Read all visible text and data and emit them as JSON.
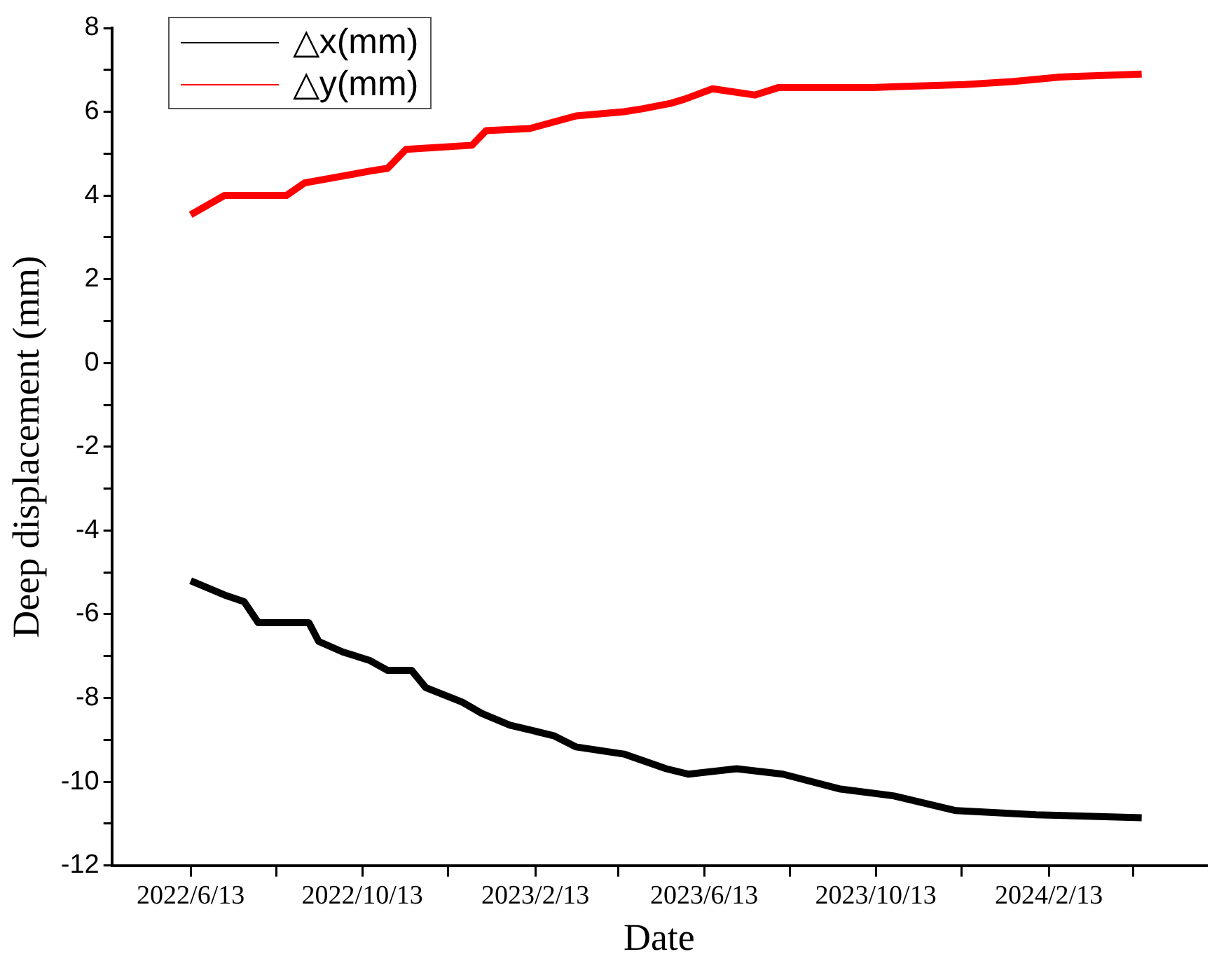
{
  "chart_data": {
    "type": "line",
    "xlabel": "Date",
    "ylabel": "Deep displacement (mm)",
    "xlim": [
      "2022-04-18",
      "2024-06-04"
    ],
    "xticks": [
      {
        "value": "2022-06-13",
        "label": "2022/6/13"
      },
      {
        "value": "2022-08-13",
        "label": null
      },
      {
        "value": "2022-10-13",
        "label": "2022/10/13"
      },
      {
        "value": "2022-12-13",
        "label": null
      },
      {
        "value": "2023-02-13",
        "label": "2023/2/13"
      },
      {
        "value": "2023-04-13",
        "label": null
      },
      {
        "value": "2023-06-13",
        "label": "2023/6/13"
      },
      {
        "value": "2023-08-13",
        "label": null
      },
      {
        "value": "2023-10-13",
        "label": "2023/10/13"
      },
      {
        "value": "2023-12-13",
        "label": null
      },
      {
        "value": "2024-02-13",
        "label": "2024/2/13"
      },
      {
        "value": "2024-04-13",
        "label": null
      }
    ],
    "ylim": [
      -12,
      8
    ],
    "yticks": [
      -12,
      {
        "value": -11,
        "label": null
      },
      -10,
      {
        "value": -9,
        "label": null
      },
      -8,
      {
        "value": -7,
        "label": null
      },
      -6,
      {
        "value": -5,
        "label": null
      },
      -4,
      {
        "value": -3,
        "label": null
      },
      -2,
      {
        "value": -1,
        "label": null
      },
      0,
      {
        "value": 1,
        "label": null
      },
      2,
      {
        "value": 3,
        "label": null
      },
      4,
      {
        "value": 5,
        "label": null
      },
      6,
      {
        "value": 7,
        "label": null
      },
      8
    ],
    "grid": false,
    "legend": "top left",
    "marker": "none",
    "line_style": "solid",
    "series": [
      {
        "name": "△x(mm)",
        "color": "#000000",
        "x": [
          "2022-06-13",
          "2022-07-07",
          "2022-07-21",
          "2022-07-31",
          "2022-09-05",
          "2022-09-12",
          "2022-09-29",
          "2022-10-18",
          "2022-10-31",
          "2022-11-17",
          "2022-11-27",
          "2022-12-23",
          "2023-01-06",
          "2023-01-26",
          "2023-02-26",
          "2023-03-14",
          "2023-04-17",
          "2023-05-17",
          "2023-06-02",
          "2023-07-06",
          "2023-08-08",
          "2023-09-17",
          "2023-10-26",
          "2023-12-09",
          "2024-02-04",
          "2024-04-19"
        ],
        "values": [
          -5.2,
          -5.54,
          -5.7,
          -6.2,
          -6.2,
          -6.65,
          -6.9,
          -7.1,
          -7.34,
          -7.34,
          -7.75,
          -8.1,
          -8.37,
          -8.65,
          -8.9,
          -9.17,
          -9.34,
          -9.69,
          -9.82,
          -9.69,
          -9.82,
          -10.17,
          -10.34,
          -10.69,
          -10.79,
          -10.86
        ]
      },
      {
        "name": "△y(mm)",
        "color": "#ff0000",
        "x": [
          "2022-06-13",
          "2022-07-07",
          "2022-08-20",
          "2022-09-02",
          "2022-10-18",
          "2022-10-31",
          "2022-11-13",
          "2022-12-30",
          "2023-01-09",
          "2023-02-09",
          "2023-03-14",
          "2023-04-17",
          "2023-04-30",
          "2023-05-20",
          "2023-05-30",
          "2023-06-19",
          "2023-07-19",
          "2023-08-05",
          "2023-10-10",
          "2023-12-15",
          "2024-01-18",
          "2024-02-21",
          "2024-04-19"
        ],
        "values": [
          3.54,
          4.0,
          4.0,
          4.3,
          4.58,
          4.65,
          5.1,
          5.2,
          5.55,
          5.6,
          5.9,
          6.0,
          6.07,
          6.2,
          6.3,
          6.55,
          6.4,
          6.58,
          6.58,
          6.65,
          6.72,
          6.83,
          6.9
        ]
      }
    ]
  }
}
